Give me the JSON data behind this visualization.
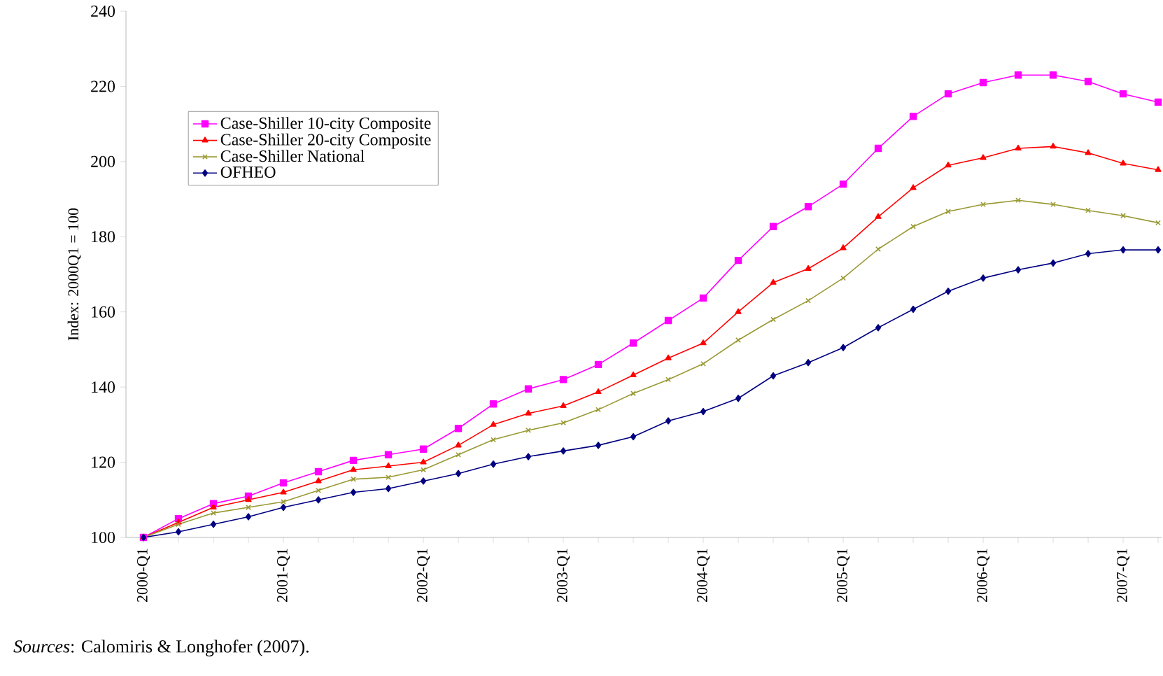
{
  "chart_data": {
    "type": "line",
    "ylabel": "Index: 2000Q1 = 100",
    "categories": [
      "2000-Q1",
      null,
      null,
      null,
      "2001-Q1",
      null,
      null,
      null,
      "2002-Q1",
      null,
      null,
      null,
      "2003-Q1",
      null,
      null,
      null,
      "2004-Q1",
      null,
      null,
      null,
      "2005-Q1",
      null,
      null,
      null,
      "2006-Q1",
      null,
      null,
      null,
      "2007-Q1",
      null
    ],
    "ylim": [
      100,
      240
    ],
    "yticks": [
      100,
      120,
      140,
      160,
      180,
      200,
      220,
      240
    ],
    "grid": false,
    "legend": "top left",
    "line_style": "solid",
    "series": [
      {
        "name": "Case-Shiller 10-city Composite",
        "color": "#ff00ff",
        "marker": "square",
        "values": [
          100,
          105,
          109,
          111,
          114.5,
          117.5,
          120.5,
          122,
          123.5,
          129,
          135.5,
          139.5,
          142,
          146,
          151.7,
          157.7,
          163.7,
          173.7,
          182.7,
          188,
          194,
          203.5,
          212,
          218,
          221,
          223,
          223,
          221.3,
          218,
          215.8
        ]
      },
      {
        "name": "Case-Shiller 20-city Composite",
        "color": "#ff0000",
        "marker": "triangle",
        "values": [
          100,
          104,
          108,
          110,
          112,
          115,
          118,
          119,
          120,
          124.5,
          130,
          133,
          135,
          138.7,
          143.2,
          147.7,
          151.7,
          160,
          167.8,
          171.5,
          177,
          185.3,
          193,
          199,
          201,
          203.5,
          204,
          202.3,
          199.5,
          197.8
        ]
      },
      {
        "name": "Case-Shiller National",
        "color": "#999933",
        "marker": "cross",
        "values": [
          100,
          103.5,
          106.5,
          108,
          109.5,
          112.5,
          115.5,
          116,
          118,
          122,
          126,
          128.5,
          130.5,
          134,
          138.3,
          142,
          146.2,
          152.5,
          158,
          163,
          169,
          176.7,
          182.7,
          186.7,
          188.6,
          189.7,
          188.6,
          187,
          185.6,
          183.7
        ]
      },
      {
        "name": "OFHEO",
        "color": "#000080",
        "marker": "diamond",
        "values": [
          100,
          101.5,
          103.5,
          105.5,
          108,
          110,
          112,
          113,
          115,
          117,
          119.5,
          121.5,
          123,
          124.5,
          126.8,
          131,
          133.5,
          137,
          143,
          146.5,
          150.5,
          155.8,
          160.7,
          165.5,
          169,
          171.2,
          173,
          175.5,
          176.5,
          176.5
        ]
      }
    ],
    "annotations": [
      "*Sources*: Calomiris & Longhofer (2007)."
    ]
  }
}
